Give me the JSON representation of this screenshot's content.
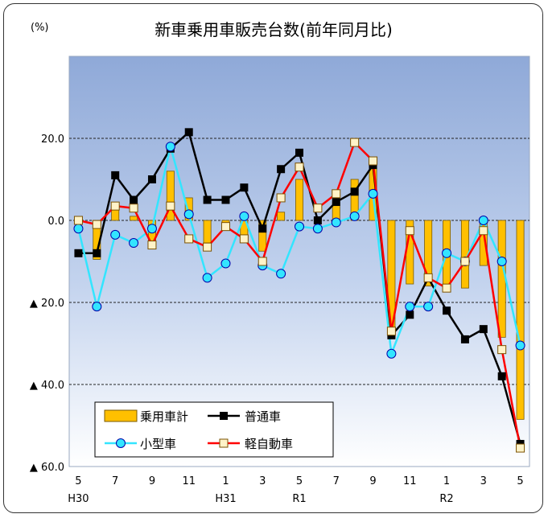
{
  "chart_data": {
    "type": "bar+line",
    "title": "新車乗用車販売台数(前年同月比)",
    "unit_label": "(%)",
    "ylim": [
      -60,
      40
    ],
    "grid": "dashed horizontal",
    "legend_position": "bottom-left",
    "categories": [
      "H30-5",
      "H30-6",
      "H30-7",
      "H30-8",
      "H30-9",
      "H30-10",
      "H30-11",
      "H30-12",
      "H31-1",
      "H31-2",
      "H31-3",
      "H31-4",
      "R1-5",
      "R1-6",
      "R1-7",
      "R1-8",
      "R1-9",
      "R1-10",
      "R1-11",
      "R1-12",
      "R2-1",
      "R2-2",
      "R2-3",
      "R2-4",
      "R2-5"
    ],
    "x_tick_labels": [
      "5",
      "",
      "7",
      "",
      "9",
      "",
      "11",
      "",
      "1",
      "",
      "3",
      "",
      "5",
      "",
      "7",
      "",
      "9",
      "",
      "11",
      "",
      "1",
      "",
      "3",
      "",
      "5"
    ],
    "era_labels": [
      {
        "index": 0,
        "text": "H30"
      },
      {
        "index": 8,
        "text": "H31"
      },
      {
        "index": 12,
        "text": "R1"
      },
      {
        "index": 20,
        "text": "R2"
      }
    ],
    "y_tick_labels": [
      {
        "value": 20,
        "text": "20.0"
      },
      {
        "value": 0,
        "text": "0.0"
      },
      {
        "value": -20,
        "text": "▲ 20.0"
      },
      {
        "value": -40,
        "text": "▲ 40.0"
      },
      {
        "value": -60,
        "text": "▲ 60.0"
      }
    ],
    "series": [
      {
        "name": "乗用車計",
        "kind": "bar",
        "color": "#FFC000",
        "values": [
          -1.0,
          -9.5,
          3.5,
          1.0,
          -5.0,
          12.0,
          5.5,
          -5.5,
          -1.5,
          -4.0,
          -7.5,
          2.0,
          10.0,
          0.5,
          4.5,
          10.0,
          14.5,
          -28.5,
          -15.5,
          -16.0,
          -17.0,
          -16.5,
          -11.0,
          -28.5,
          -48.5
        ]
      },
      {
        "name": "普通車",
        "kind": "line",
        "color": "#000000",
        "marker": "square",
        "values": [
          -8.0,
          -8.0,
          11.0,
          5.0,
          10.0,
          17.5,
          21.5,
          5.0,
          5.0,
          8.0,
          -2.0,
          12.5,
          16.5,
          0.0,
          4.5,
          7.0,
          13.5,
          -28.0,
          -23.0,
          -14.0,
          -22.0,
          -29.0,
          -26.5,
          -38.0,
          -54.5
        ]
      },
      {
        "name": "小型車",
        "kind": "line",
        "color": "#33E5FF",
        "marker": "circle",
        "values": [
          -2.0,
          -21.0,
          -3.5,
          -5.5,
          -2.0,
          18.0,
          1.5,
          -14.0,
          -10.5,
          1.0,
          -11.0,
          -13.0,
          -1.5,
          -2.0,
          -0.5,
          1.0,
          6.5,
          -32.5,
          -21.0,
          -21.0,
          -8.0,
          -10.0,
          0.0,
          -10.0,
          -30.5
        ]
      },
      {
        "name": "軽自動車",
        "kind": "line",
        "color": "#FF0000",
        "marker": "square-cream",
        "values": [
          0.0,
          -1.0,
          3.5,
          3.0,
          -6.0,
          3.5,
          -4.5,
          -6.5,
          -1.5,
          -4.5,
          -10.0,
          5.5,
          13.0,
          3.0,
          6.5,
          19.0,
          14.5,
          -27.0,
          -2.5,
          -14.0,
          -16.5,
          -10.0,
          -2.5,
          -31.5,
          -55.5
        ]
      }
    ]
  }
}
